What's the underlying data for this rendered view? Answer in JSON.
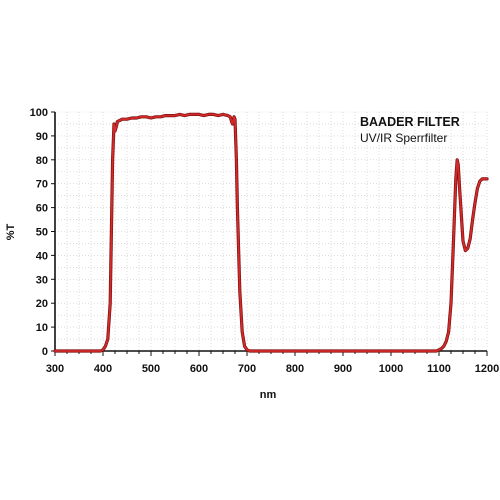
{
  "chart_data": {
    "type": "line",
    "title": "",
    "xlabel": "nm",
    "ylabel": "%T",
    "xlim": [
      300,
      1200
    ],
    "ylim": [
      0,
      100
    ],
    "x_ticks": [
      300,
      400,
      500,
      600,
      700,
      800,
      900,
      1000,
      1100,
      1200
    ],
    "y_ticks": [
      0,
      10,
      20,
      30,
      40,
      50,
      60,
      70,
      80,
      90,
      100
    ],
    "grid": true,
    "annotations": {
      "brand": "BAADER FILTER",
      "product": "UV/IR Sperrfilter"
    },
    "series": [
      {
        "color": "#d42a2a",
        "x": [
          300,
          395,
          400,
          405,
          410,
          415,
          418,
          420,
          423,
          425,
          428,
          430,
          435,
          440,
          450,
          460,
          470,
          480,
          490,
          500,
          510,
          520,
          530,
          540,
          550,
          560,
          570,
          580,
          590,
          600,
          610,
          620,
          630,
          640,
          650,
          660,
          665,
          668,
          670,
          673,
          675,
          678,
          680,
          685,
          690,
          695,
          700,
          705,
          1095,
          1100,
          1105,
          1110,
          1115,
          1120,
          1125,
          1130,
          1135,
          1138,
          1140,
          1143,
          1147,
          1150,
          1155,
          1160,
          1165,
          1170,
          1175,
          1180,
          1185,
          1190,
          1195,
          1200
        ],
        "y": [
          0,
          0,
          0.5,
          2,
          5,
          20,
          55,
          80,
          95,
          92,
          94,
          96,
          96.5,
          97,
          97,
          97.5,
          97.5,
          98,
          98,
          97.5,
          98,
          98,
          98.5,
          98.5,
          98.5,
          99,
          98.5,
          99,
          99,
          99,
          98.5,
          99,
          99,
          98.5,
          99,
          98.5,
          98,
          96,
          95,
          98,
          97,
          80,
          60,
          25,
          8,
          2,
          0.5,
          0,
          0,
          0.5,
          1,
          2,
          4,
          8,
          20,
          45,
          72,
          80,
          78,
          68,
          55,
          46,
          42,
          43,
          47,
          55,
          62,
          68,
          71,
          72,
          72,
          72
        ]
      }
    ]
  }
}
